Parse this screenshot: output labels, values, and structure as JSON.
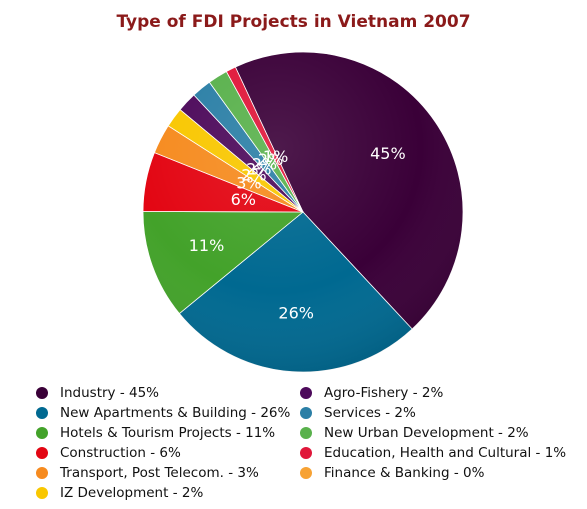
{
  "chart_data": {
    "type": "pie",
    "title": "Type of FDI Projects in Vietnam 2007",
    "slices": [
      {
        "name": "Industry - 45%",
        "value": 45,
        "label": "45%",
        "color": "#3a0038"
      },
      {
        "name": "New Apartments & Building - 26%",
        "value": 26,
        "label": "26%",
        "color": "#006991"
      },
      {
        "name": "Hotels & Tourism Projects - 11%",
        "value": 11,
        "label": "11%",
        "color": "#43a22a"
      },
      {
        "name": "Construction - 6%",
        "value": 6,
        "label": "6%",
        "color": "#e30613"
      },
      {
        "name": "Transport, Post Telecom. - 3%",
        "value": 3,
        "label": "3%",
        "color": "#f68b1f"
      },
      {
        "name": "IZ Development - 2%",
        "value": 2,
        "label": "2%",
        "color": "#f9c700"
      },
      {
        "name": "Agro-Fishery - 2%",
        "value": 2,
        "label": "2%",
        "color": "#4d0a5b"
      },
      {
        "name": "Services - 2%",
        "value": 2,
        "label": "2%",
        "color": "#2b7fa6"
      },
      {
        "name": "New Urban Development - 2%",
        "value": 2,
        "label": "2%",
        "color": "#59b14c"
      },
      {
        "name": "Education, Health and Cultural - 1%",
        "value": 1,
        "label": "1%",
        "color": "#e0173a"
      },
      {
        "name": "Finance & Banking - 0%",
        "value": 0,
        "label": "",
        "color": "#f7a234"
      }
    ],
    "legend": {
      "placement": "bottom",
      "items": [
        {
          "text": "Industry - 45%",
          "color": "#3a0038"
        },
        {
          "text": "New Apartments & Building - 26%",
          "color": "#006991"
        },
        {
          "text": "Hotels & Tourism Projects - 11%",
          "color": "#43a22a"
        },
        {
          "text": "Construction - 6%",
          "color": "#e30613"
        },
        {
          "text": "Transport, Post Telecom. - 3%",
          "color": "#f68b1f"
        },
        {
          "text": "IZ Development - 2%",
          "color": "#f9c700"
        },
        {
          "text": "Agro-Fishery - 2%",
          "color": "#4d0a5b"
        },
        {
          "text": "Services - 2%",
          "color": "#2b7fa6"
        },
        {
          "text": "New Urban Development - 2%",
          "color": "#59b14c"
        },
        {
          "text": "Education, Health and Cultural - 1%",
          "color": "#e0173a"
        },
        {
          "text": "Finance & Banking - 0%",
          "color": "#f7a234"
        }
      ]
    }
  }
}
